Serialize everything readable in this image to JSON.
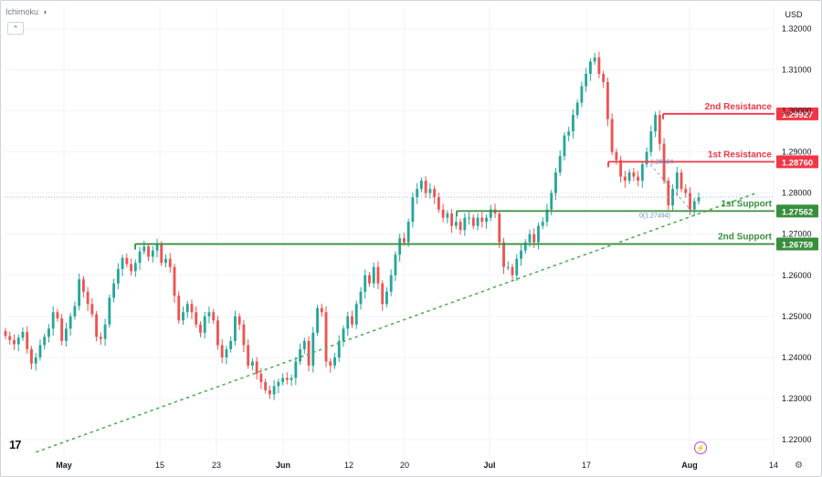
{
  "indicator": {
    "label": "Ichimoku"
  },
  "currency": "USD",
  "tv_logo": "17",
  "colors": {
    "up": "#26a69a",
    "down": "#ef5350",
    "resistance": "#f23645",
    "support": "#388e3c",
    "trend": "#4caf50",
    "price_line": "#9fb2d3"
  },
  "chart_data": {
    "type": "candlestick",
    "title": "",
    "ylim": [
      1.216,
      1.3252
    ],
    "y_ticks": [
      "1.32000",
      "1.31000",
      "1.30000",
      "1.29000",
      "1.28000",
      "1.27000",
      "1.26000",
      "1.25000",
      "1.24000",
      "1.23000",
      "1.22000"
    ],
    "x_ticks": [
      "May",
      "15",
      "23",
      "Jun",
      "12",
      "20",
      "Jul",
      "17",
      "Aug",
      "14"
    ],
    "levels": [
      {
        "name": "2nd Resistance",
        "value": 1.29927,
        "tag": "1.29927",
        "kind": "resistance",
        "from": "late Jul"
      },
      {
        "name": "1st Resistance",
        "value": 1.2876,
        "tag": "1.28760",
        "kind": "resistance",
        "from": "mid Jul"
      },
      {
        "name": "1st Support",
        "value": 1.27562,
        "tag": "1.27562",
        "kind": "support",
        "from": "late Jun"
      },
      {
        "name": "2nd Support",
        "value": 1.26759,
        "tag": "1.26759",
        "kind": "support",
        "from": "May"
      }
    ],
    "fib_labels": [
      {
        "text": "0(1.27494)"
      },
      {
        "text": "1.28694"
      }
    ],
    "trendline": {
      "from": {
        "date": "late Apr",
        "y": 1.217
      },
      "to": {
        "date": "early Aug",
        "y": 1.28
      },
      "style": "dotted"
    },
    "current_price": 1.279,
    "closes": [
      1.2452,
      1.2442,
      1.2432,
      1.2448,
      1.2462,
      1.242,
      1.2385,
      1.24,
      1.243,
      1.245,
      1.247,
      1.251,
      1.2495,
      1.244,
      1.247,
      1.25,
      1.2525,
      1.259,
      1.256,
      1.253,
      1.2505,
      1.245,
      1.2445,
      1.248,
      1.2545,
      1.258,
      1.2615,
      1.2642,
      1.2627,
      1.261,
      1.263,
      1.2658,
      1.267,
      1.2645,
      1.266,
      1.2675,
      1.263,
      1.264,
      1.262,
      1.255,
      1.249,
      1.251,
      1.253,
      1.251,
      1.248,
      1.246,
      1.25,
      1.251,
      1.249,
      1.243,
      1.24,
      1.242,
      1.244,
      1.25,
      1.248,
      1.243,
      1.238,
      1.239,
      1.236,
      1.234,
      1.232,
      1.231,
      1.233,
      1.234,
      1.235,
      1.2345,
      1.235,
      1.239,
      1.242,
      1.244,
      1.238,
      1.246,
      1.252,
      1.251,
      1.239,
      1.238,
      1.24,
      1.244,
      1.247,
      1.25,
      1.248,
      1.253,
      1.256,
      1.26,
      1.258,
      1.262,
      1.258,
      1.253,
      1.256,
      1.26,
      1.265,
      1.269,
      1.268,
      1.273,
      1.279,
      1.281,
      1.283,
      1.28,
      1.281,
      1.279,
      1.276,
      1.274,
      1.275,
      1.272,
      1.273,
      1.271,
      1.274,
      1.274,
      1.272,
      1.274,
      1.273,
      1.274,
      1.276,
      1.275,
      1.268,
      1.262,
      1.262,
      1.26,
      1.264,
      1.266,
      1.268,
      1.27,
      1.268,
      1.272,
      1.273,
      1.276,
      1.28,
      1.285,
      1.289,
      1.294,
      1.295,
      1.299,
      1.302,
      1.306,
      1.309,
      1.312,
      1.313,
      1.309,
      1.307,
      1.298,
      1.29,
      1.288,
      1.284,
      1.283,
      1.285,
      1.284,
      1.283,
      1.287,
      1.29,
      1.295,
      1.299,
      1.292,
      1.283,
      1.277,
      1.281,
      1.285,
      1.281,
      1.28,
      1.276,
      1.278,
      1.279
    ]
  }
}
